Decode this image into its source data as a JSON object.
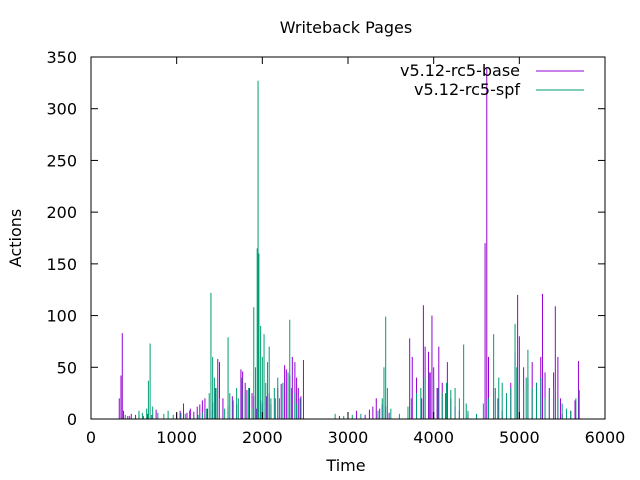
{
  "chart_data": {
    "type": "line",
    "title": "Writeback Pages",
    "xlabel": "Time",
    "ylabel": "Actions",
    "xlim": [
      0,
      6000
    ],
    "ylim": [
      0,
      350
    ],
    "x_ticks": [
      "0",
      "1000",
      "2000",
      "3000",
      "4000",
      "5000",
      "6000"
    ],
    "y_ticks": [
      "0",
      "50",
      "100",
      "150",
      "200",
      "250",
      "300",
      "350"
    ],
    "grid": false,
    "legend_position": "top-right",
    "series": [
      {
        "name": "v5.12-rc5-base",
        "color": "#9400d3",
        "spikes": [
          [
            330,
            20
          ],
          [
            350,
            42
          ],
          [
            365,
            83
          ],
          [
            380,
            8
          ],
          [
            430,
            3
          ],
          [
            470,
            5
          ],
          [
            520,
            4
          ],
          [
            560,
            6
          ],
          [
            610,
            3
          ],
          [
            660,
            5
          ],
          [
            710,
            4
          ],
          [
            760,
            9
          ],
          [
            1000,
            5
          ],
          [
            1040,
            8
          ],
          [
            1080,
            15
          ],
          [
            1120,
            6
          ],
          [
            1160,
            10
          ],
          [
            1200,
            7
          ],
          [
            1240,
            12
          ],
          [
            1270,
            14
          ],
          [
            1300,
            18
          ],
          [
            1330,
            20
          ],
          [
            1360,
            10
          ],
          [
            1400,
            8
          ],
          [
            1420,
            16
          ],
          [
            1450,
            30
          ],
          [
            1480,
            58
          ],
          [
            1500,
            55
          ],
          [
            1540,
            20
          ],
          [
            1600,
            12
          ],
          [
            1650,
            22
          ],
          [
            1700,
            14
          ],
          [
            1750,
            48
          ],
          [
            1770,
            46
          ],
          [
            1800,
            35
          ],
          [
            1820,
            28
          ],
          [
            1850,
            30
          ],
          [
            1880,
            25
          ],
          [
            1900,
            22
          ],
          [
            1930,
            10
          ],
          [
            1980,
            18
          ],
          [
            2000,
            15
          ],
          [
            2050,
            22
          ],
          [
            2080,
            25
          ],
          [
            2100,
            14
          ],
          [
            2150,
            20
          ],
          [
            2180,
            30
          ],
          [
            2220,
            34
          ],
          [
            2260,
            52
          ],
          [
            2280,
            48
          ],
          [
            2320,
            42
          ],
          [
            2350,
            60
          ],
          [
            2380,
            55
          ],
          [
            2400,
            40
          ],
          [
            2420,
            30
          ],
          [
            2450,
            22
          ],
          [
            2480,
            57
          ],
          [
            2900,
            3
          ],
          [
            3000,
            5
          ],
          [
            3100,
            8
          ],
          [
            3200,
            4
          ],
          [
            3250,
            9
          ],
          [
            3290,
            12
          ],
          [
            3330,
            20
          ],
          [
            3370,
            10
          ],
          [
            3400,
            14
          ],
          [
            3440,
            12
          ],
          [
            3480,
            6
          ],
          [
            3720,
            78
          ],
          [
            3750,
            60
          ],
          [
            3800,
            40
          ],
          [
            3860,
            20
          ],
          [
            3880,
            110
          ],
          [
            3900,
            70
          ],
          [
            3940,
            65
          ],
          [
            3960,
            45
          ],
          [
            3980,
            100
          ],
          [
            4000,
            50
          ],
          [
            4040,
            30
          ],
          [
            4060,
            70
          ],
          [
            4100,
            35
          ],
          [
            4140,
            25
          ],
          [
            4160,
            55
          ],
          [
            4200,
            20
          ],
          [
            4250,
            12
          ],
          [
            4300,
            8
          ],
          [
            4400,
            5
          ],
          [
            4500,
            3
          ],
          [
            4600,
            170
          ],
          [
            4620,
            340
          ],
          [
            4640,
            60
          ],
          [
            4700,
            30
          ],
          [
            4750,
            20
          ],
          [
            4800,
            8
          ],
          [
            4850,
            12
          ],
          [
            4900,
            35
          ],
          [
            4950,
            65
          ],
          [
            4980,
            120
          ],
          [
            5000,
            80
          ],
          [
            5050,
            50
          ],
          [
            5100,
            40
          ],
          [
            5150,
            55
          ],
          [
            5200,
            35
          ],
          [
            5250,
            60
          ],
          [
            5270,
            121
          ],
          [
            5300,
            45
          ],
          [
            5350,
            30
          ],
          [
            5400,
            45
          ],
          [
            5420,
            109
          ],
          [
            5450,
            60
          ],
          [
            5480,
            20
          ],
          [
            5500,
            5
          ],
          [
            5600,
            8
          ],
          [
            5650,
            18
          ],
          [
            5690,
            56
          ]
        ]
      },
      {
        "name": "v5.12-rc5-spf",
        "color": "#009e73",
        "spikes": [
          [
            400,
            4
          ],
          [
            450,
            3
          ],
          [
            560,
            8
          ],
          [
            600,
            6
          ],
          [
            650,
            10
          ],
          [
            670,
            37
          ],
          [
            690,
            73
          ],
          [
            720,
            12
          ],
          [
            780,
            6
          ],
          [
            850,
            5
          ],
          [
            900,
            8
          ],
          [
            960,
            4
          ],
          [
            1050,
            6
          ],
          [
            1100,
            5
          ],
          [
            1150,
            8
          ],
          [
            1200,
            3
          ],
          [
            1250,
            4
          ],
          [
            1300,
            6
          ],
          [
            1350,
            10
          ],
          [
            1380,
            25
          ],
          [
            1400,
            122
          ],
          [
            1420,
            60
          ],
          [
            1440,
            40
          ],
          [
            1460,
            30
          ],
          [
            1500,
            20
          ],
          [
            1560,
            10
          ],
          [
            1600,
            79
          ],
          [
            1620,
            25
          ],
          [
            1660,
            18
          ],
          [
            1700,
            30
          ],
          [
            1720,
            20
          ],
          [
            1760,
            40
          ],
          [
            1800,
            25
          ],
          [
            1840,
            30
          ],
          [
            1880,
            10
          ],
          [
            1900,
            108
          ],
          [
            1920,
            50
          ],
          [
            1940,
            165
          ],
          [
            1950,
            327
          ],
          [
            1960,
            160
          ],
          [
            1980,
            90
          ],
          [
            2000,
            60
          ],
          [
            2020,
            82
          ],
          [
            2040,
            35
          ],
          [
            2060,
            55
          ],
          [
            2080,
            70
          ],
          [
            2100,
            20
          ],
          [
            2140,
            30
          ],
          [
            2180,
            40
          ],
          [
            2200,
            20
          ],
          [
            2240,
            35
          ],
          [
            2300,
            45
          ],
          [
            2320,
            96
          ],
          [
            2340,
            30
          ],
          [
            2380,
            25
          ],
          [
            2400,
            15
          ],
          [
            2440,
            20
          ],
          [
            2850,
            5
          ],
          [
            2950,
            3
          ],
          [
            3050,
            4
          ],
          [
            3150,
            5
          ],
          [
            3350,
            8
          ],
          [
            3400,
            20
          ],
          [
            3420,
            50
          ],
          [
            3440,
            99
          ],
          [
            3460,
            30
          ],
          [
            3500,
            10
          ],
          [
            3600,
            5
          ],
          [
            3700,
            12
          ],
          [
            3740,
            20
          ],
          [
            3800,
            25
          ],
          [
            3850,
            30
          ],
          [
            3900,
            40
          ],
          [
            3950,
            45
          ],
          [
            4000,
            38
          ],
          [
            4050,
            30
          ],
          [
            4100,
            25
          ],
          [
            4150,
            35
          ],
          [
            4200,
            28
          ],
          [
            4250,
            30
          ],
          [
            4300,
            20
          ],
          [
            4350,
            72
          ],
          [
            4380,
            15
          ],
          [
            4400,
            8
          ],
          [
            4500,
            5
          ],
          [
            4580,
            15
          ],
          [
            4640,
            20
          ],
          [
            4700,
            82
          ],
          [
            4720,
            30
          ],
          [
            4760,
            40
          ],
          [
            4800,
            35
          ],
          [
            4850,
            25
          ],
          [
            4900,
            30
          ],
          [
            4950,
            92
          ],
          [
            4970,
            50
          ],
          [
            5000,
            35
          ],
          [
            5050,
            28
          ],
          [
            5080,
            40
          ],
          [
            5100,
            67
          ],
          [
            5150,
            30
          ],
          [
            5200,
            35
          ],
          [
            5250,
            40
          ],
          [
            5300,
            20
          ],
          [
            5350,
            25
          ],
          [
            5400,
            30
          ],
          [
            5450,
            20
          ],
          [
            5500,
            15
          ],
          [
            5550,
            10
          ],
          [
            5600,
            8
          ],
          [
            5660,
            20
          ],
          [
            5700,
            28
          ]
        ]
      }
    ]
  }
}
